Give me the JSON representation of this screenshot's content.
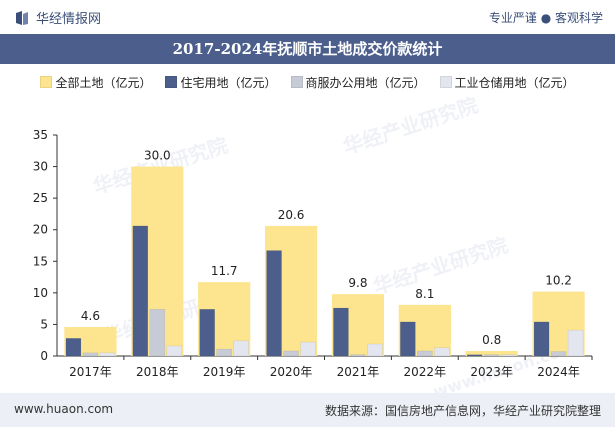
{
  "header": {
    "brand": "华经情报网",
    "slogan": "专业严谨 ● 客观科学"
  },
  "title": "2017-2024年抚顺市土地成交价款统计",
  "legend": [
    {
      "label": "全部土地（亿元）",
      "color": "#fde58f"
    },
    {
      "label": "住宅用地（亿元）",
      "color": "#4c5f8c"
    },
    {
      "label": "商服办公用地（亿元）",
      "color": "#c7cbd6"
    },
    {
      "label": "工业仓储用地（亿元）",
      "color": "#e3e6ee"
    }
  ],
  "watermarks": [
    "华经产业研究院",
    "www.huaon.com"
  ],
  "chart_data": {
    "type": "bar",
    "categories": [
      "2017年",
      "2018年",
      "2019年",
      "2020年",
      "2021年",
      "2022年",
      "2023年",
      "2024年"
    ],
    "series": [
      {
        "name": "全部土地（亿元）",
        "values": [
          4.6,
          30.0,
          11.7,
          20.6,
          9.8,
          8.1,
          0.8,
          10.2
        ],
        "color": "#fde58f",
        "labels": [
          "4.6",
          "30.0",
          "11.7",
          "20.6",
          "9.8",
          "8.1",
          "0.8",
          "10.2"
        ]
      },
      {
        "name": "住宅用地（亿元）",
        "values": [
          2.8,
          20.6,
          7.4,
          16.7,
          7.6,
          5.4,
          0.2,
          5.4
        ],
        "color": "#4c5f8c"
      },
      {
        "name": "商服办公用地（亿元）",
        "values": [
          0.5,
          7.4,
          1.1,
          0.8,
          0.2,
          0.8,
          0.2,
          0.7
        ],
        "color": "#c7cbd6"
      },
      {
        "name": "工业仓储用地（亿元）",
        "values": [
          0.5,
          1.6,
          2.4,
          2.2,
          1.9,
          1.3,
          0.2,
          4.1
        ],
        "color": "#e3e6ee"
      }
    ],
    "yticks": [
      "0",
      "5",
      "10",
      "15",
      "20",
      "25",
      "30",
      "35"
    ],
    "ylim": [
      0,
      35
    ],
    "grid": false
  },
  "footer": {
    "site": "www.huaon.com",
    "source": "数据来源：国信房地产信息网，华经产业研究院整理"
  }
}
